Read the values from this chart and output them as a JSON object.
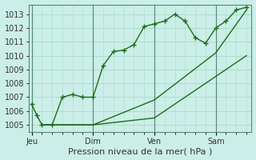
{
  "xlabel": "Pression niveau de la mer( hPa )",
  "background_color": "#cceee8",
  "grid_color": "#aaddcc",
  "line_color": "#1a6e1a",
  "ylim": [
    1004.5,
    1013.7
  ],
  "yticks": [
    1005,
    1006,
    1007,
    1008,
    1009,
    1010,
    1011,
    1012,
    1013
  ],
  "x_tick_labels": [
    "Jeu",
    "Dim",
    "Ven",
    "Sam"
  ],
  "x_tick_positions": [
    0,
    6,
    12,
    18
  ],
  "vlines": [
    0,
    6,
    12,
    18
  ],
  "series1_x": [
    0,
    0.5,
    1,
    2,
    3,
    4,
    5,
    6,
    7,
    8,
    9,
    10,
    11,
    12,
    13,
    14,
    15,
    16,
    17,
    18,
    19,
    20,
    21
  ],
  "series1_y": [
    1006.5,
    1005.7,
    1005.0,
    1005.0,
    1007.0,
    1007.2,
    1007.0,
    1007.0,
    1009.3,
    1010.3,
    1010.4,
    1010.8,
    1012.1,
    1012.3,
    1012.5,
    1013.0,
    1012.5,
    1011.3,
    1010.9,
    1012.0,
    1012.5,
    1013.3,
    1013.5
  ],
  "series2_x": [
    1,
    6,
    12,
    18,
    21
  ],
  "series2_y": [
    1005.0,
    1005.0,
    1006.8,
    1010.2,
    1013.3
  ],
  "series3_x": [
    1,
    6,
    12,
    18,
    21
  ],
  "series3_y": [
    1005.0,
    1005.0,
    1005.5,
    1008.5,
    1010.0
  ]
}
